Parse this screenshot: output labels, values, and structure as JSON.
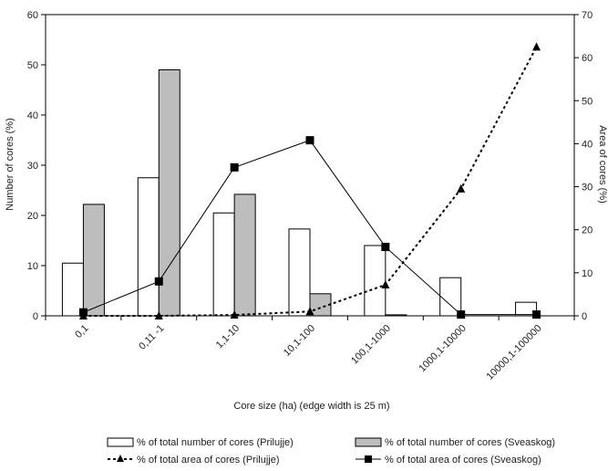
{
  "chart_data": {
    "type": "bar",
    "categories": [
      "0,1",
      "0,11 -1",
      "1,1-10",
      "10,1-100",
      "100,1-1000",
      "1000,1-10000",
      "10000,1-100000"
    ],
    "xlabel": "Core size (ha) (edge width is 25 m)",
    "ylabel": "Number of cores (%)",
    "y2label": "Area of cores (%)",
    "ylim": [
      0,
      60
    ],
    "y2lim": [
      0,
      70
    ],
    "yticks": [
      "0",
      "10",
      "20",
      "30",
      "40",
      "50",
      "60"
    ],
    "y2ticks": [
      "0",
      "10",
      "20",
      "30",
      "40",
      "50",
      "60",
      "70"
    ],
    "grid": false,
    "legend_position": "bottom",
    "series": [
      {
        "name": "% of total number of cores (Prilujje)",
        "kind": "bar",
        "axis": "left",
        "color": "#ffffff",
        "values": [
          10.5,
          27.5,
          20.5,
          17.3,
          14.0,
          7.6,
          2.7
        ]
      },
      {
        "name": "% of total number of cores (Sveaskog)",
        "kind": "bar",
        "axis": "left",
        "color": "#bdbdbd",
        "values": [
          22.2,
          49.0,
          24.2,
          4.4,
          0.2,
          0,
          0
        ]
      },
      {
        "name": "% of total area of cores (Prilujje)",
        "kind": "line",
        "axis": "right",
        "style": "dotted",
        "marker": "triangle",
        "color": "#000000",
        "values": [
          0,
          0,
          0.2,
          1.0,
          7.2,
          29.5,
          62.5
        ]
      },
      {
        "name": "% of total area of cores (Sveaskog)",
        "kind": "line",
        "axis": "right",
        "style": "solid",
        "marker": "square",
        "color": "#000000",
        "values": [
          0.8,
          8.0,
          34.5,
          40.8,
          16.0,
          0.3,
          0.3
        ]
      }
    ]
  }
}
